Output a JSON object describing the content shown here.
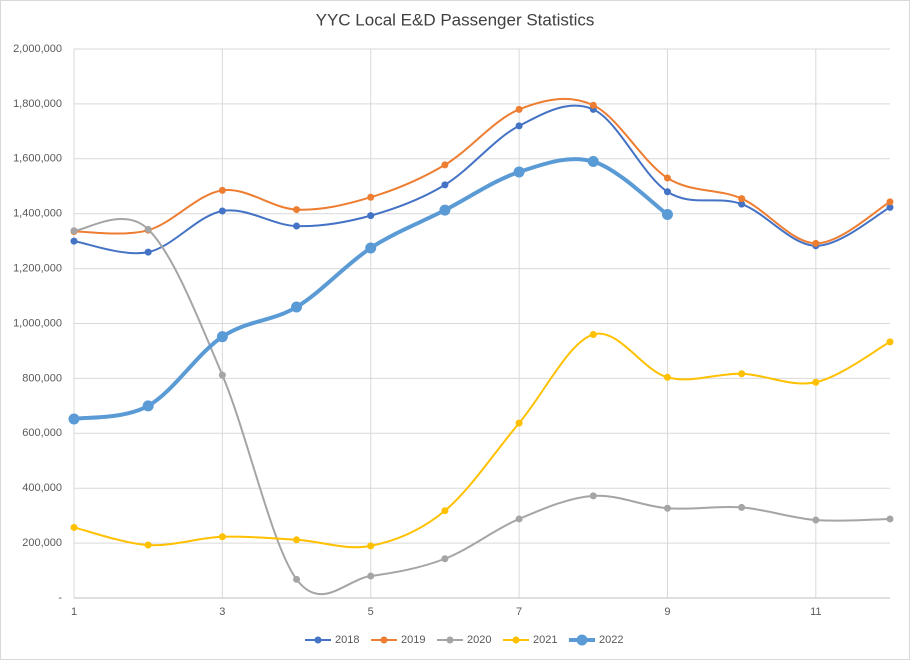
{
  "chart_data": {
    "type": "line",
    "title": "YYC Local E&D Passenger Statistics",
    "x": [
      1,
      2,
      3,
      4,
      5,
      6,
      7,
      8,
      9,
      10,
      11,
      12
    ],
    "xlim": [
      1,
      12
    ],
    "xticks": [
      1,
      3,
      5,
      7,
      9,
      11
    ],
    "ylim": [
      0,
      2000000
    ],
    "yticks": [
      {
        "value": 0,
        "label": "-"
      },
      {
        "value": 200000,
        "label": "200,000"
      },
      {
        "value": 400000,
        "label": "400,000"
      },
      {
        "value": 600000,
        "label": "600,000"
      },
      {
        "value": 800000,
        "label": "800,000"
      },
      {
        "value": 1000000,
        "label": "1,000,000"
      },
      {
        "value": 1200000,
        "label": "1,200,000"
      },
      {
        "value": 1400000,
        "label": "1,400,000"
      },
      {
        "value": 1600000,
        "label": "1,600,000"
      },
      {
        "value": 1800000,
        "label": "1,800,000"
      },
      {
        "value": 2000000,
        "label": "2,000,000"
      }
    ],
    "grid": true,
    "smooth": true,
    "legend": "bottom",
    "series": [
      {
        "name": "2018",
        "color": "#4472c4",
        "line_width": 2,
        "values": [
          1300000,
          1260000,
          1410000,
          1355000,
          1393000,
          1505000,
          1720000,
          1780000,
          1480000,
          1435000,
          1283000,
          1423000
        ]
      },
      {
        "name": "2019",
        "color": "#ed7d31",
        "line_width": 2,
        "values": [
          1335000,
          1340000,
          1485000,
          1415000,
          1460000,
          1578000,
          1780000,
          1795000,
          1530000,
          1455000,
          1292000,
          1443000
        ]
      },
      {
        "name": "2020",
        "color": "#a5a5a5",
        "line_width": 2,
        "values": [
          1338000,
          1343000,
          812000,
          68000,
          80000,
          143000,
          288000,
          372000,
          327000,
          330000,
          284000,
          288000
        ]
      },
      {
        "name": "2021",
        "color": "#ffc000",
        "line_width": 2,
        "values": [
          257000,
          193000,
          223000,
          212000,
          190000,
          318000,
          637000,
          960000,
          804000,
          817000,
          786000,
          933000
        ]
      },
      {
        "name": "2022",
        "color": "#5b9bd5",
        "line_width": 4,
        "values": [
          652000,
          700000,
          952000,
          1060000,
          1275000,
          1413000,
          1552000,
          1590000,
          1397000,
          null,
          null,
          null
        ]
      }
    ]
  }
}
